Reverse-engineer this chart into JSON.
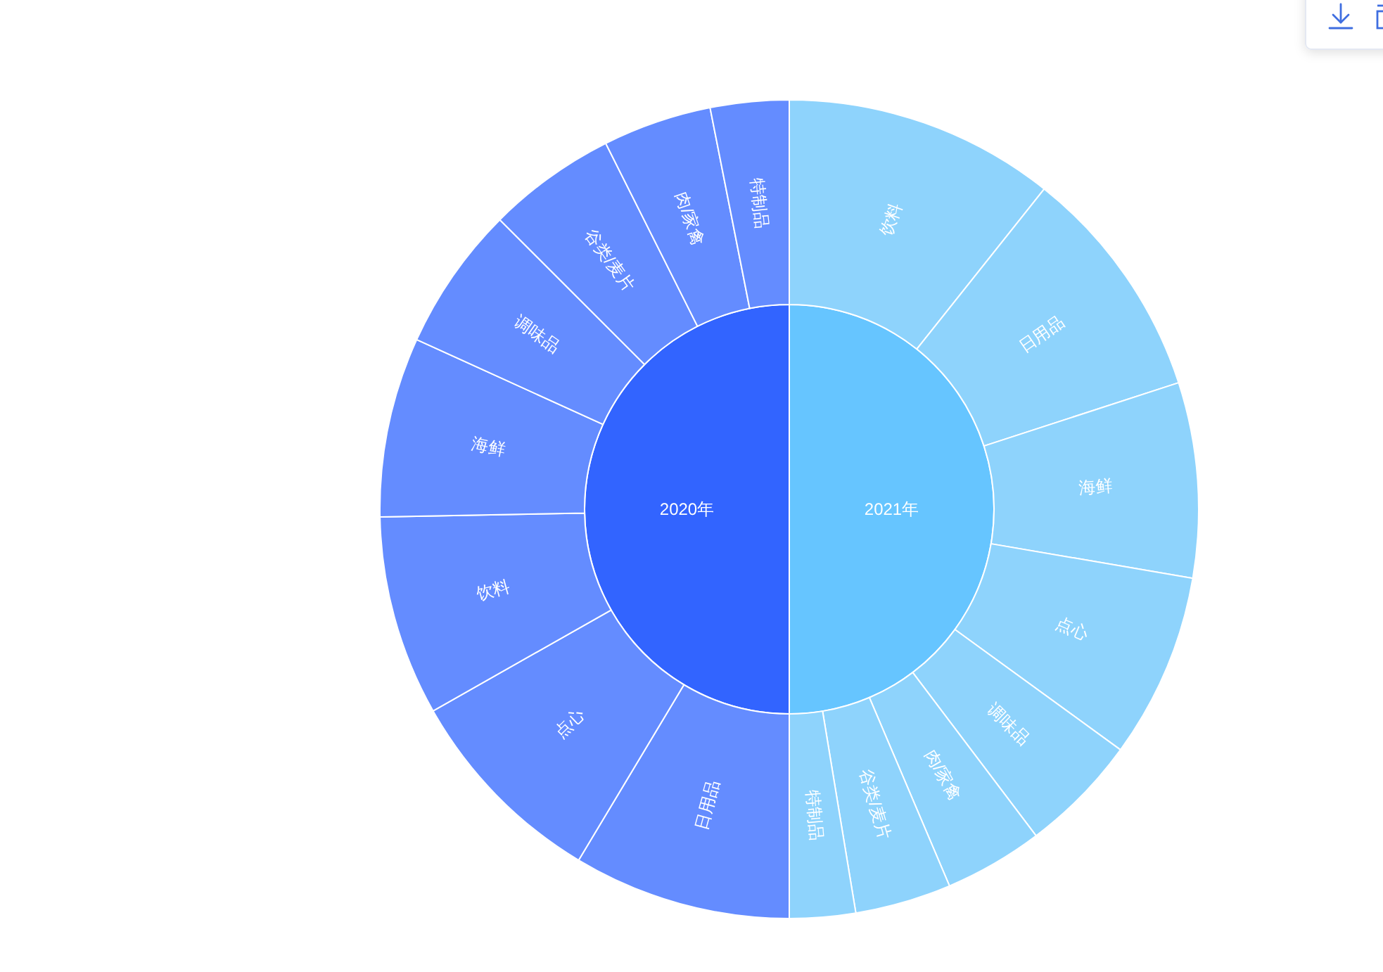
{
  "chart_data": [
    {
      "type": "pie",
      "categories": [
        "2021年",
        "2020年"
      ],
      "values": [
        50,
        50
      ],
      "colors": [
        "#66c5ff",
        "#3264ff"
      ]
    },
    {
      "type": "donut",
      "categories": [
        "饮料",
        "日用品",
        "海鲜",
        "点心",
        "调味品",
        "肉/家禽",
        "谷类/麦片",
        "特制品",
        "日用品",
        "点心",
        "饮料",
        "海鲜",
        "调味品",
        "谷类/麦片",
        "肉/家禽",
        "特制品"
      ],
      "values": [
        10.7,
        9.3,
        7.7,
        7.3,
        4.7,
        3.9,
        3.8,
        2.6,
        8.6,
        8.2,
        7.9,
        7.1,
        5.7,
        5.1,
        4.3,
        3.1
      ],
      "colors": [
        "#8ed3fc",
        "#8ed3fc",
        "#8ed3fc",
        "#8ed3fc",
        "#8ed3fc",
        "#8ed3fc",
        "#8ed3fc",
        "#8ed3fc",
        "#648cff",
        "#648cff",
        "#648cff",
        "#648cff",
        "#648cff",
        "#648cff",
        "#648cff",
        "#648cff"
      ]
    }
  ]
}
